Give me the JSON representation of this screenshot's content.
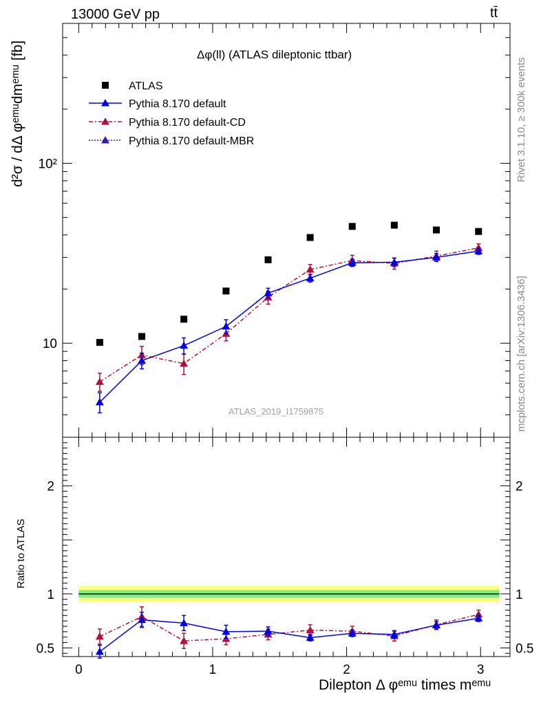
{
  "header": {
    "left": "13000 GeV pp",
    "right": "tt̄"
  },
  "side_labels": {
    "top": "Rivet 3.1.10, ≥ 300k events",
    "bottom": "mcplots.cern.ch [arXiv:1306.3436]"
  },
  "colors": {
    "atlas": "#000000",
    "default": "#0000e0",
    "cd": "#b0103a",
    "mbr": "#3a16b0",
    "band_outer": "#ffff80",
    "band_inner": "#80ee80"
  },
  "chart_data": [
    {
      "type": "scatter",
      "title": "Δφ(ll) (ATLAS dileptonic ttbar)",
      "watermark": "ATLAS_2019_I1759875",
      "ylabel": "d²σ / dΔ φᵉᵐᵘdmᵉᵐᵘ [fb]",
      "yscale": "log",
      "ylim": [
        3,
        600
      ],
      "xlim": [
        -0.12,
        3.22
      ],
      "ytick_labels": [
        "10",
        "10²"
      ],
      "legend_position": "top-left",
      "x": [
        0.157,
        0.471,
        0.785,
        1.1,
        1.414,
        1.728,
        2.042,
        2.356,
        2.67,
        2.985
      ],
      "series": [
        {
          "name": "ATLAS",
          "marker": "square",
          "values": [
            10.1,
            10.9,
            13.6,
            19.5,
            29.1,
            38.7,
            44.6,
            45.3,
            42.6,
            41.8
          ]
        },
        {
          "name": "Pythia 8.170 default",
          "marker": "triangle",
          "line": "solid",
          "values": [
            4.7,
            8.0,
            9.7,
            12.4,
            19.0,
            23.0,
            28.0,
            28.2,
            30.0,
            32.5
          ],
          "errors": [
            0.6,
            0.8,
            1.0,
            1.1,
            1.2,
            1.1,
            1.3,
            1.5,
            1.5,
            1.3
          ]
        },
        {
          "name": "Pythia 8.170 default-CD",
          "marker": "triangle",
          "line": "dashdot",
          "values": [
            6.1,
            8.6,
            7.7,
            11.3,
            18.0,
            25.7,
            28.8,
            27.8,
            30.5,
            33.9
          ],
          "errors": [
            0.7,
            1.0,
            1.0,
            1.0,
            1.5,
            1.7,
            2.0,
            2.0,
            2.0,
            1.8
          ]
        },
        {
          "name": "Pythia 8.170 default-MBR",
          "marker": "triangle",
          "line": "dotted",
          "values": [],
          "errors": []
        }
      ]
    },
    {
      "type": "scatter",
      "xlabel": "Dilepton Δ φᵉᵐᵘ times mᵉᵐᵘ",
      "ylabel": "Ratio to ATLAS",
      "ylim": [
        0.42,
        2.45
      ],
      "xlim": [
        -0.12,
        3.22
      ],
      "xtick_labels": [
        "0",
        "1",
        "2",
        "3"
      ],
      "ytick_labels": [
        "0.5",
        "1",
        "2"
      ],
      "x": [
        0.157,
        0.471,
        0.785,
        1.1,
        1.414,
        1.728,
        2.042,
        2.356,
        2.67,
        2.985
      ],
      "band": {
        "outer": 0.075,
        "inner": 0.035,
        "x_range": [
          0.0,
          3.14
        ]
      },
      "series": [
        {
          "name": "Pythia 8.170 default",
          "values": [
            0.465,
            0.76,
            0.73,
            0.65,
            0.655,
            0.595,
            0.635,
            0.625,
            0.71,
            0.775
          ],
          "errors": [
            0.06,
            0.07,
            0.07,
            0.06,
            0.04,
            0.03,
            0.03,
            0.035,
            0.035,
            0.03
          ]
        },
        {
          "name": "Pythia 8.170 default-CD",
          "values": [
            0.605,
            0.79,
            0.565,
            0.585,
            0.625,
            0.665,
            0.655,
            0.61,
            0.715,
            0.81
          ],
          "errors": [
            0.07,
            0.09,
            0.07,
            0.055,
            0.05,
            0.05,
            0.045,
            0.045,
            0.045,
            0.04
          ]
        }
      ]
    }
  ]
}
